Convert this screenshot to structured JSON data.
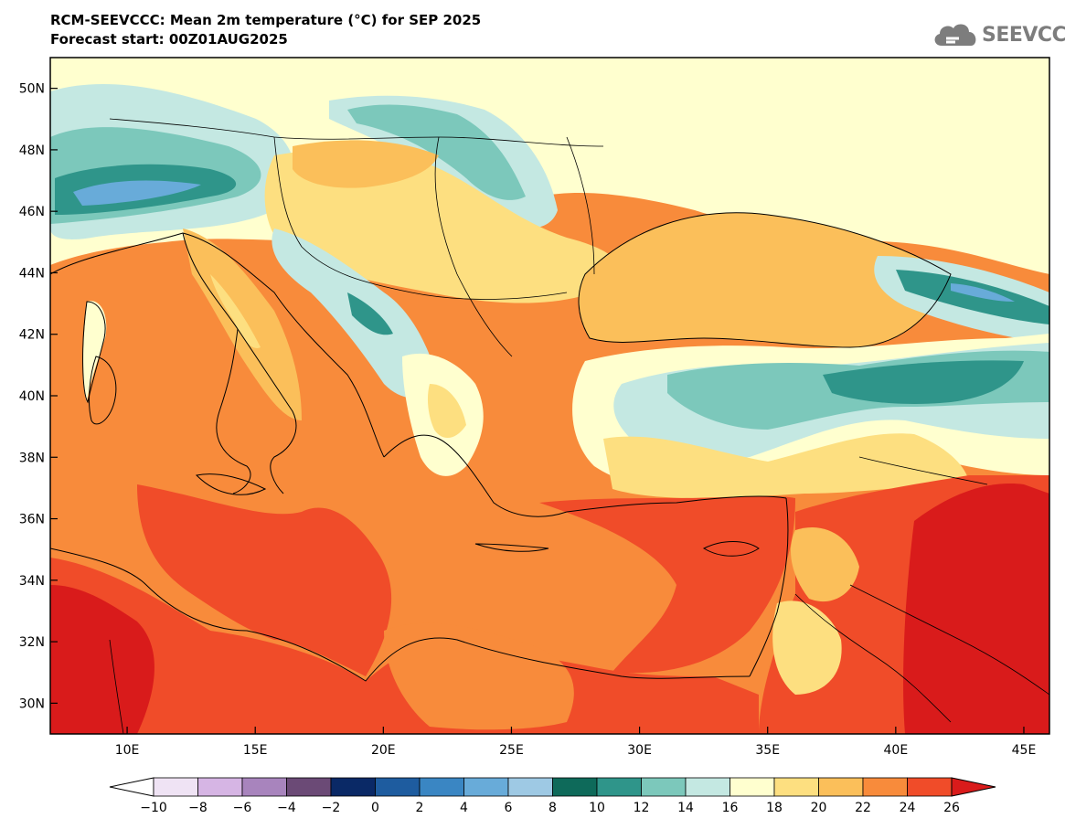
{
  "header": {
    "title_line1": "RCM-SEEVCCC: Mean 2m temperature (°C) for SEP 2025",
    "title_line2": "Forecast start: 00Z01AUG2025"
  },
  "logo": {
    "text": "SEEVCCC",
    "icon": "cloud-icon"
  },
  "map": {
    "projection": "lat-lon",
    "lon_range": [
      7,
      46
    ],
    "lat_range": [
      29,
      51
    ],
    "lat_ticks": [
      "50N",
      "48N",
      "46N",
      "44N",
      "42N",
      "40N",
      "38N",
      "36N",
      "34N",
      "32N",
      "30N"
    ],
    "lon_ticks": [
      "10E",
      "15E",
      "20E",
      "25E",
      "30E",
      "35E",
      "40E",
      "45E"
    ],
    "colors": {
      "lt_minus10": "#ffffff",
      "m10_m8": "#efe3f4",
      "m8_m6": "#d6b5e4",
      "m6_m4": "#a884bd",
      "m4_m2": "#6b4a76",
      "m2_0": "#0a2966",
      "0_2": "#1e5c9f",
      "2_4": "#3a86c3",
      "4_6": "#68abd9",
      "6_8": "#9ec9e4",
      "8_10": "#0e6a5a",
      "10_12": "#2f958a",
      "12_14": "#7cc8bb",
      "14_16": "#c4e8e2",
      "16_18": "#ffffcf",
      "18_20": "#fddf80",
      "20_22": "#fbbf5a",
      "22_24": "#f88b3b",
      "24_26": "#f04c29",
      "gt26": "#d91b1b"
    }
  },
  "colorbar": {
    "labels": [
      "−10",
      "−8",
      "−6",
      "−4",
      "−2",
      "0",
      "2",
      "4",
      "6",
      "8",
      "10",
      "12",
      "14",
      "16",
      "18",
      "20",
      "22",
      "24",
      "26"
    ]
  }
}
